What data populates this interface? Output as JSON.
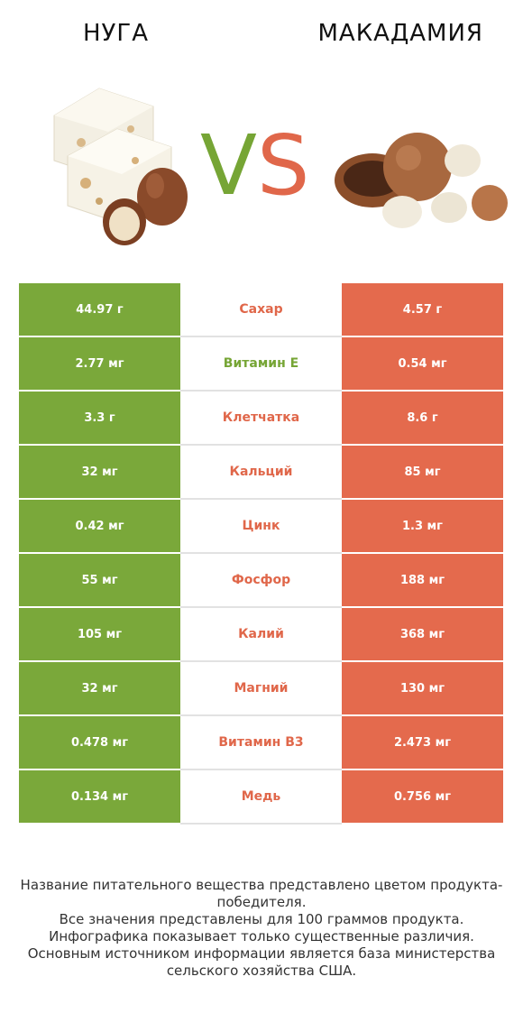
{
  "header": {
    "left_title": "НУГА",
    "right_title": "МАКАДАМИЯ",
    "vs_v": "V",
    "vs_s": "S"
  },
  "colors": {
    "winner_left": "#76a535",
    "winner_right": "#e0674a",
    "left_cell": "#7aa83a",
    "right_cell": "#e46a4d"
  },
  "rows": [
    {
      "left": "44.97 г",
      "nutrient": "Сахар",
      "right": "4.57 г",
      "winner": "right"
    },
    {
      "left": "2.77 мг",
      "nutrient": "Витамин E",
      "right": "0.54 мг",
      "winner": "left"
    },
    {
      "left": "3.3 г",
      "nutrient": "Клетчатка",
      "right": "8.6 г",
      "winner": "right"
    },
    {
      "left": "32 мг",
      "nutrient": "Кальций",
      "right": "85 мг",
      "winner": "right"
    },
    {
      "left": "0.42 мг",
      "nutrient": "Цинк",
      "right": "1.3 мг",
      "winner": "right"
    },
    {
      "left": "55 мг",
      "nutrient": "Фосфор",
      "right": "188 мг",
      "winner": "right"
    },
    {
      "left": "105 мг",
      "nutrient": "Калий",
      "right": "368 мг",
      "winner": "right"
    },
    {
      "left": "32 мг",
      "nutrient": "Магний",
      "right": "130 мг",
      "winner": "right"
    },
    {
      "left": "0.478 мг",
      "nutrient": "Витамин B3",
      "right": "2.473 мг",
      "winner": "right"
    },
    {
      "left": "0.134 мг",
      "nutrient": "Медь",
      "right": "0.756 мг",
      "winner": "right"
    }
  ],
  "footer": {
    "line1": "Название питательного вещества представлено цветом продукта-победителя.",
    "line2": "Все значения представлены для 100 граммов продукта.",
    "line3": "Инфографика показывает только существенные различия.",
    "line4": "Основным источником информации является база министерства сельского хозяйства США."
  }
}
